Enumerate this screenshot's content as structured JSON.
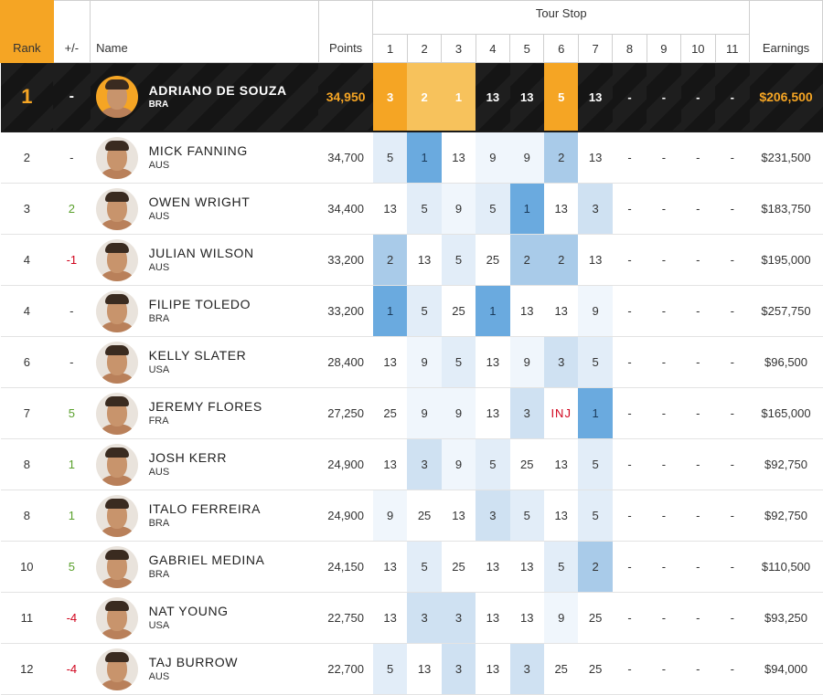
{
  "header": {
    "rank": "Rank",
    "change": "+/-",
    "name": "Name",
    "points": "Points",
    "tour_stop": "Tour Stop",
    "stops": [
      "1",
      "2",
      "3",
      "4",
      "5",
      "6",
      "7",
      "8",
      "9",
      "10",
      "11"
    ],
    "earnings": "Earnings"
  },
  "colors": {
    "accent": "#f5a524",
    "leader_bg": "#151515",
    "positive": "#5aa02c",
    "negative": "#d0021b"
  },
  "leader": {
    "rank": "1",
    "change": "-",
    "name": "ADRIANO DE SOUZA",
    "country": "BRA",
    "points": "34,950",
    "stops": [
      "3",
      "2",
      "1",
      "13",
      "13",
      "5",
      "13",
      "-",
      "-",
      "-",
      "-"
    ],
    "earnings": "$206,500"
  },
  "rows": [
    {
      "rank": "2",
      "change": "-",
      "name": "MICK FANNING",
      "country": "AUS",
      "points": "34,700",
      "stops": [
        "5",
        "1",
        "13",
        "9",
        "9",
        "2",
        "13",
        "-",
        "-",
        "-",
        "-"
      ],
      "earnings": "$231,500"
    },
    {
      "rank": "3",
      "change": "2",
      "name": "OWEN WRIGHT",
      "country": "AUS",
      "points": "34,400",
      "stops": [
        "13",
        "5",
        "9",
        "5",
        "1",
        "13",
        "3",
        "-",
        "-",
        "-",
        "-"
      ],
      "earnings": "$183,750"
    },
    {
      "rank": "4",
      "change": "-1",
      "name": "JULIAN WILSON",
      "country": "AUS",
      "points": "33,200",
      "stops": [
        "2",
        "13",
        "5",
        "25",
        "2",
        "2",
        "13",
        "-",
        "-",
        "-",
        "-"
      ],
      "earnings": "$195,000"
    },
    {
      "rank": "4",
      "change": "-",
      "name": "FILIPE TOLEDO",
      "country": "BRA",
      "points": "33,200",
      "stops": [
        "1",
        "5",
        "25",
        "1",
        "13",
        "13",
        "9",
        "-",
        "-",
        "-",
        "-"
      ],
      "earnings": "$257,750"
    },
    {
      "rank": "6",
      "change": "-",
      "name": "KELLY SLATER",
      "country": "USA",
      "points": "28,400",
      "stops": [
        "13",
        "9",
        "5",
        "13",
        "9",
        "3",
        "5",
        "-",
        "-",
        "-",
        "-"
      ],
      "earnings": "$96,500"
    },
    {
      "rank": "7",
      "change": "5",
      "name": "JEREMY FLORES",
      "country": "FRA",
      "points": "27,250",
      "stops": [
        "25",
        "9",
        "9",
        "13",
        "3",
        "INJ",
        "1",
        "-",
        "-",
        "-",
        "-"
      ],
      "earnings": "$165,000"
    },
    {
      "rank": "8",
      "change": "1",
      "name": "JOSH KERR",
      "country": "AUS",
      "points": "24,900",
      "stops": [
        "13",
        "3",
        "9",
        "5",
        "25",
        "13",
        "5",
        "-",
        "-",
        "-",
        "-"
      ],
      "earnings": "$92,750"
    },
    {
      "rank": "8",
      "change": "1",
      "name": "ITALO FERREIRA",
      "country": "BRA",
      "points": "24,900",
      "stops": [
        "9",
        "25",
        "13",
        "3",
        "5",
        "13",
        "5",
        "-",
        "-",
        "-",
        "-"
      ],
      "earnings": "$92,750"
    },
    {
      "rank": "10",
      "change": "5",
      "name": "GABRIEL MEDINA",
      "country": "BRA",
      "points": "24,150",
      "stops": [
        "13",
        "5",
        "25",
        "13",
        "13",
        "5",
        "2",
        "-",
        "-",
        "-",
        "-"
      ],
      "earnings": "$110,500"
    },
    {
      "rank": "11",
      "change": "-4",
      "name": "NAT YOUNG",
      "country": "USA",
      "points": "22,750",
      "stops": [
        "13",
        "3",
        "3",
        "13",
        "13",
        "9",
        "25",
        "-",
        "-",
        "-",
        "-"
      ],
      "earnings": "$93,250"
    },
    {
      "rank": "12",
      "change": "-4",
      "name": "TAJ BURROW",
      "country": "AUS",
      "points": "22,700",
      "stops": [
        "5",
        "13",
        "3",
        "13",
        "3",
        "25",
        "25",
        "-",
        "-",
        "-",
        "-"
      ],
      "earnings": "$94,000"
    }
  ]
}
